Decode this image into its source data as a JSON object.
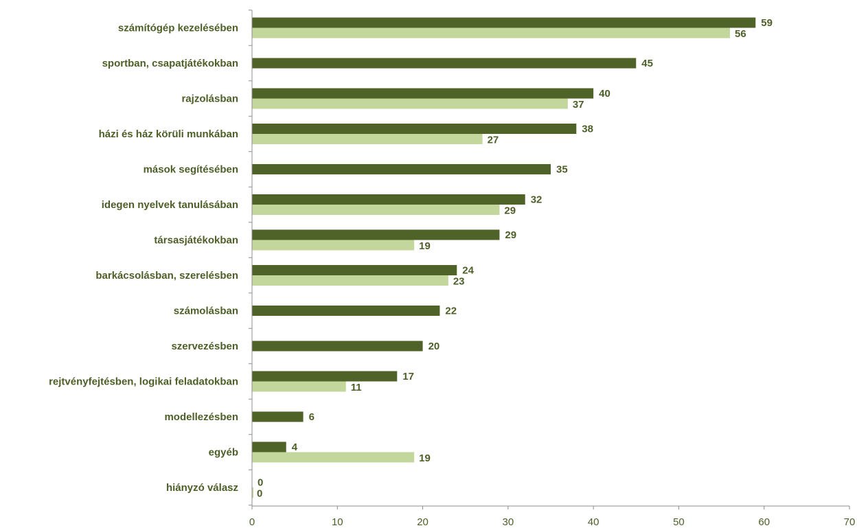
{
  "chart_data": {
    "type": "bar",
    "orientation": "horizontal",
    "categories": [
      "számítógép kezelésében",
      "sportban, csapatjátékokban",
      "rajzolásban",
      "házi és ház körüli munkában",
      "mások segítésében",
      "idegen nyelvek tanulásában",
      "társasjátékokban",
      "barkácsolásban, szerelésben",
      "számolásban",
      "szervezésben",
      "rejtvényfejtésben, logikai feladatokban",
      "modellezésben",
      "egyéb",
      "hiányzó válasz"
    ],
    "series": [
      {
        "color": "#4f6228",
        "values": [
          59,
          45,
          40,
          38,
          35,
          32,
          29,
          24,
          22,
          20,
          17,
          6,
          4,
          0
        ]
      },
      {
        "color": "#c3d69b",
        "values": [
          56,
          null,
          37,
          27,
          null,
          29,
          19,
          23,
          null,
          null,
          11,
          null,
          19,
          0
        ]
      }
    ],
    "xlim": [
      0,
      70
    ],
    "xticks": [
      "0",
      "10",
      "20",
      "30",
      "40",
      "50",
      "60",
      "70"
    ],
    "title": "",
    "xlabel": "",
    "ylabel": "",
    "grid": false,
    "legend": "none"
  },
  "colors": {
    "text": "#4d5f27",
    "axis": "#8c8c8c"
  }
}
